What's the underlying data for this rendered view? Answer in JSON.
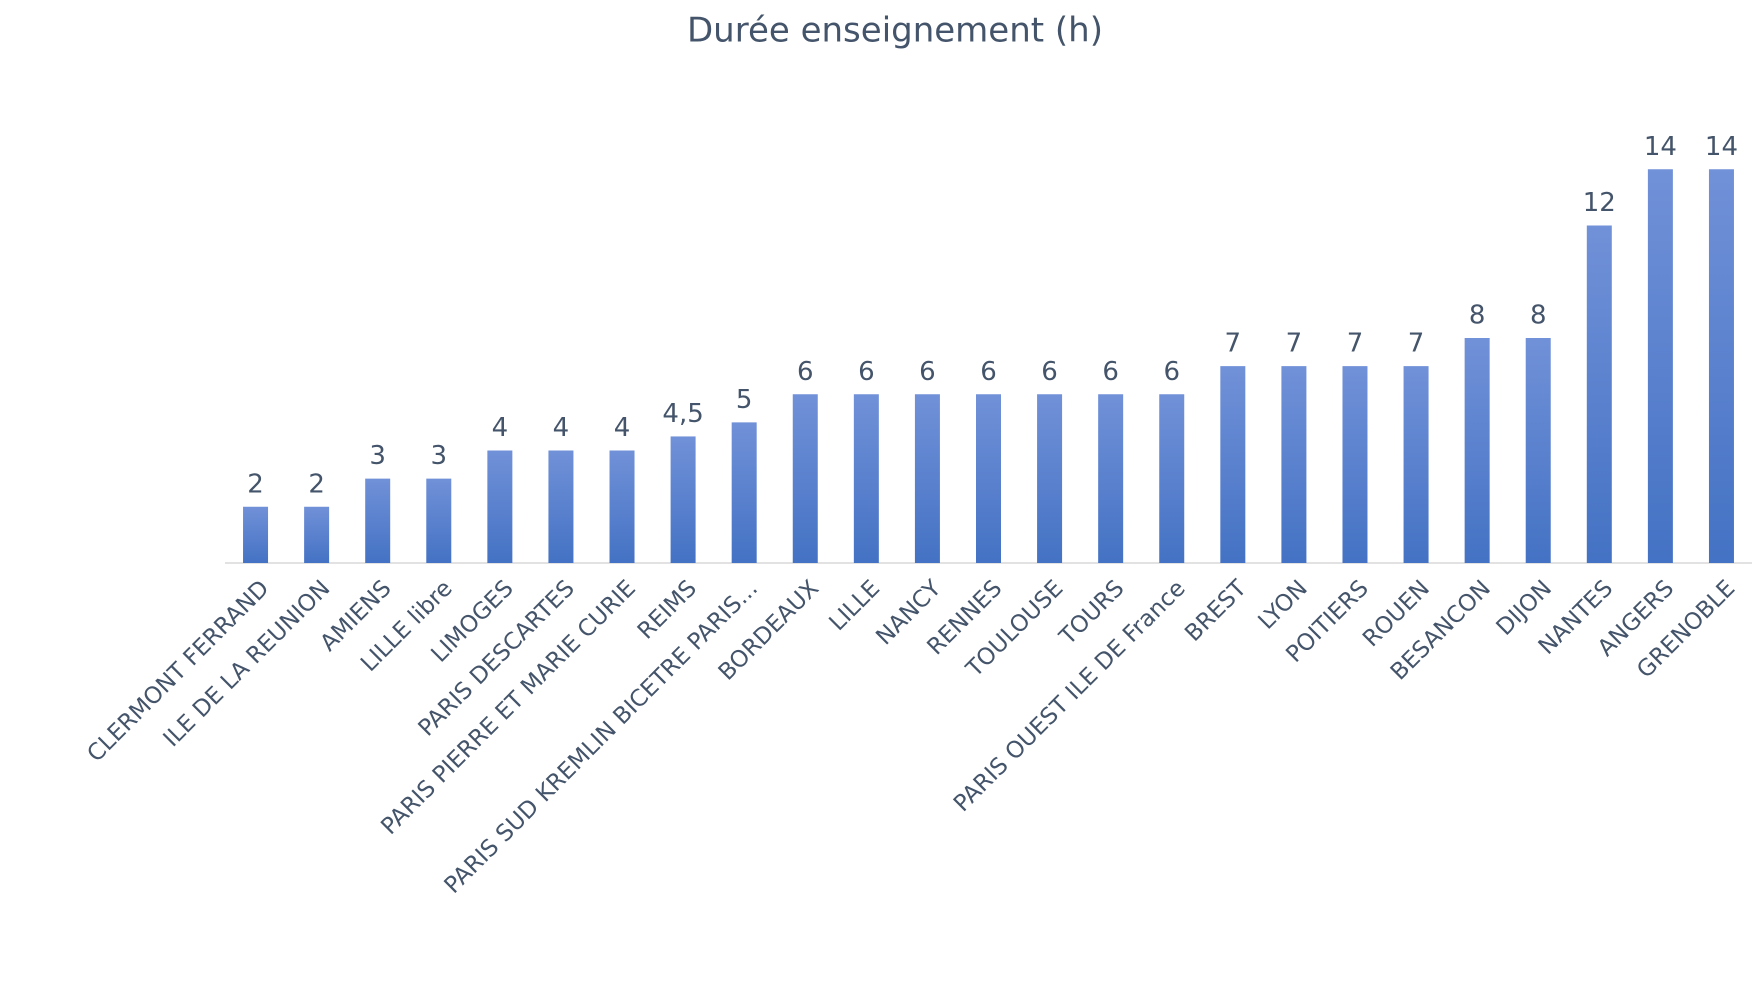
{
  "chart_data": {
    "type": "bar",
    "title": "Durée enseignement (h)",
    "categories": [
      "CLERMONT FERRAND",
      "ILE DE LA REUNION",
      "AMIENS",
      "LILLE libre",
      "LIMOGES",
      "PARIS DESCARTES",
      "PARIS PIERRE ET MARIE CURIE",
      "REIMS",
      "PARIS SUD KREMLIN BICETRE PARIS...",
      "BORDEAUX",
      "LILLE",
      "NANCY",
      "RENNES",
      "TOULOUSE",
      "TOURS",
      "PARIS OUEST ILE DE France",
      "BREST",
      "LYON",
      "POITIERS",
      "ROUEN",
      "BESANCON",
      "DIJON",
      "NANTES",
      "ANGERS",
      "GRENOBLE"
    ],
    "values": [
      2,
      2,
      3,
      3,
      4,
      4,
      4,
      4.5,
      5,
      6,
      6,
      6,
      6,
      6,
      6,
      6,
      7,
      7,
      7,
      7,
      8,
      8,
      12,
      14,
      14
    ],
    "value_labels": [
      "2",
      "2",
      "3",
      "3",
      "4",
      "4",
      "4",
      "4,5",
      "5",
      "6",
      "6",
      "6",
      "6",
      "6",
      "6",
      "6",
      "7",
      "7",
      "7",
      "7",
      "8",
      "8",
      "12",
      "14",
      "14"
    ],
    "color": "#4472c4",
    "ylim": [
      0,
      16
    ]
  }
}
